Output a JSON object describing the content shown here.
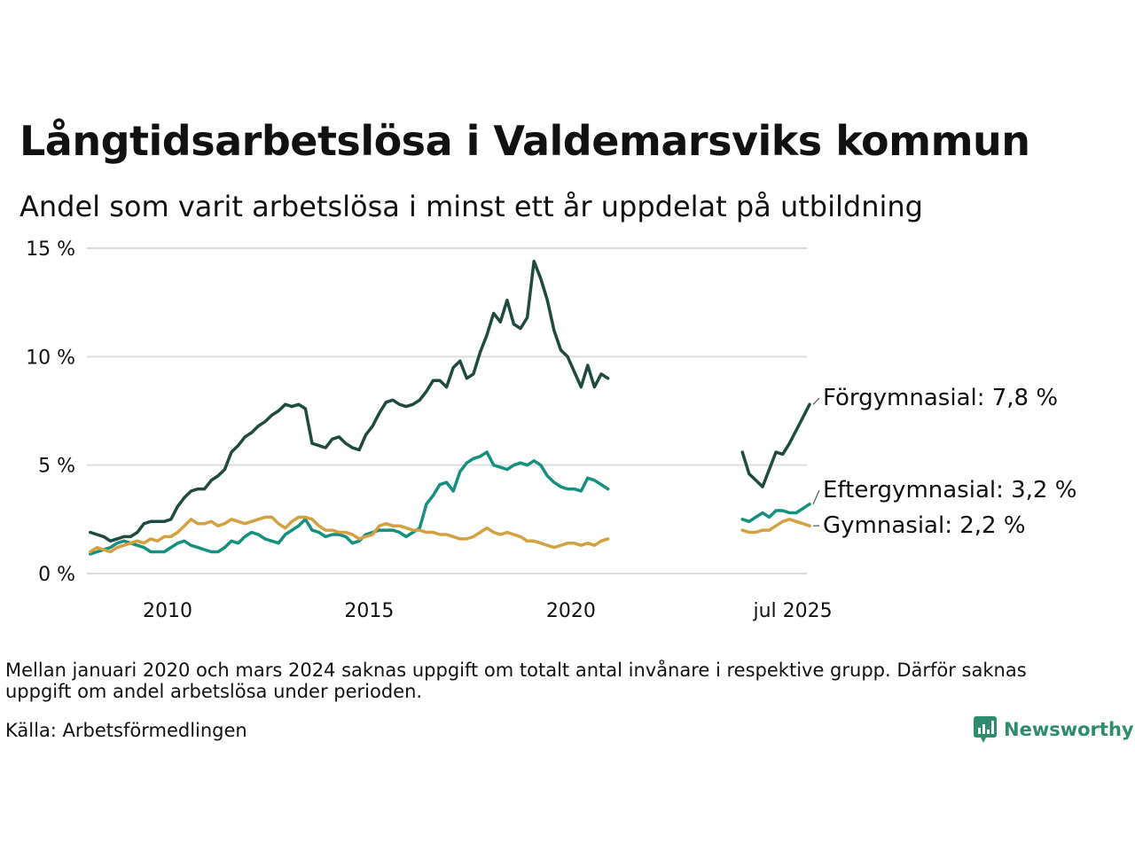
{
  "title": "Långtidsarbetslösa i Valdemarsviks kommun",
  "subtitle": "Andel som varit arbetslösa i minst ett år uppdelat på utbildning",
  "note": "Mellan januari 2020 och mars 2024 saknas uppgift om totalt antal invånare i respektive grupp. Därför saknas uppgift om andel arbetslösa under perioden.",
  "source": "Källa: Arbetsförmedlingen",
  "brand": {
    "name": "Newsworthy",
    "icon": "newsworthy-logo-icon"
  },
  "colors": {
    "forgymnasial": "#1f4a40",
    "eftergymnasial": "#14907f",
    "gymnasial": "#d4a040",
    "grid": "#dddddd",
    "brand": "#2e8b6e"
  },
  "chart_data": {
    "type": "line",
    "title": "Långtidsarbetslösa i Valdemarsviks kommun",
    "xlabel": "",
    "ylabel": "",
    "x_ticks": [
      "2010",
      "2015",
      "2020",
      "jul 2025"
    ],
    "y_ticks": [
      "0 %",
      "5 %",
      "10 %",
      "15 %"
    ],
    "ylim": [
      0,
      15
    ],
    "grid": true,
    "gap": "januari 2020 – mars 2024",
    "series": [
      {
        "name": "Förgymnasial",
        "end_label": "Förgymnasial: 7,8 %",
        "color": "#1f4a40",
        "points": [
          [
            "2008-02",
            1.9
          ],
          [
            "2008-04",
            1.8
          ],
          [
            "2008-06",
            1.7
          ],
          [
            "2008-08",
            1.5
          ],
          [
            "2008-10",
            1.6
          ],
          [
            "2008-12",
            1.7
          ],
          [
            "2009-02",
            1.7
          ],
          [
            "2009-04",
            1.9
          ],
          [
            "2009-06",
            2.3
          ],
          [
            "2009-08",
            2.4
          ],
          [
            "2009-10",
            2.4
          ],
          [
            "2009-12",
            2.4
          ],
          [
            "2010-02",
            2.5
          ],
          [
            "2010-04",
            3.1
          ],
          [
            "2010-06",
            3.5
          ],
          [
            "2010-08",
            3.8
          ],
          [
            "2010-10",
            3.9
          ],
          [
            "2010-12",
            3.9
          ],
          [
            "2011-02",
            4.3
          ],
          [
            "2011-04",
            4.5
          ],
          [
            "2011-06",
            4.8
          ],
          [
            "2011-08",
            5.6
          ],
          [
            "2011-10",
            5.9
          ],
          [
            "2011-12",
            6.3
          ],
          [
            "2012-02",
            6.5
          ],
          [
            "2012-04",
            6.8
          ],
          [
            "2012-06",
            7.0
          ],
          [
            "2012-08",
            7.3
          ],
          [
            "2012-10",
            7.5
          ],
          [
            "2012-12",
            7.8
          ],
          [
            "2013-02",
            7.7
          ],
          [
            "2013-04",
            7.8
          ],
          [
            "2013-06",
            7.6
          ],
          [
            "2013-08",
            6.0
          ],
          [
            "2013-10",
            5.9
          ],
          [
            "2013-12",
            5.8
          ],
          [
            "2014-02",
            6.2
          ],
          [
            "2014-04",
            6.3
          ],
          [
            "2014-06",
            6.0
          ],
          [
            "2014-08",
            5.8
          ],
          [
            "2014-10",
            5.7
          ],
          [
            "2014-12",
            6.4
          ],
          [
            "2015-02",
            6.8
          ],
          [
            "2015-04",
            7.4
          ],
          [
            "2015-06",
            7.9
          ],
          [
            "2015-08",
            8.0
          ],
          [
            "2015-10",
            7.8
          ],
          [
            "2015-12",
            7.7
          ],
          [
            "2016-02",
            7.8
          ],
          [
            "2016-04",
            8.0
          ],
          [
            "2016-06",
            8.4
          ],
          [
            "2016-08",
            8.9
          ],
          [
            "2016-10",
            8.9
          ],
          [
            "2016-12",
            8.6
          ],
          [
            "2017-02",
            9.5
          ],
          [
            "2017-04",
            9.8
          ],
          [
            "2017-06",
            9.0
          ],
          [
            "2017-08",
            9.2
          ],
          [
            "2017-10",
            10.2
          ],
          [
            "2017-12",
            11.0
          ],
          [
            "2018-02",
            12.0
          ],
          [
            "2018-04",
            11.6
          ],
          [
            "2018-06",
            12.6
          ],
          [
            "2018-08",
            11.5
          ],
          [
            "2018-10",
            11.3
          ],
          [
            "2018-12",
            11.8
          ],
          [
            "2019-02",
            14.4
          ],
          [
            "2019-04",
            13.6
          ],
          [
            "2019-06",
            12.6
          ],
          [
            "2019-08",
            11.2
          ],
          [
            "2019-10",
            10.3
          ],
          [
            "2019-12",
            10.0
          ],
          [
            "2020-02",
            9.3
          ],
          [
            "2020-04",
            8.6
          ],
          [
            "2020-06",
            9.6
          ],
          [
            "2020-08",
            8.6
          ],
          [
            "2020-10",
            9.2
          ],
          [
            "2020-12",
            9.0
          ],
          null,
          [
            "2024-04",
            5.6
          ],
          [
            "2024-06",
            4.6
          ],
          [
            "2024-08",
            4.3
          ],
          [
            "2024-10",
            4.0
          ],
          [
            "2024-12",
            4.8
          ],
          [
            "2025-02",
            5.6
          ],
          [
            "2025-04",
            5.5
          ],
          [
            "2025-06",
            6.0
          ],
          [
            "2025-08",
            6.6
          ],
          [
            "2025-10",
            7.2
          ],
          [
            "2025-12",
            7.8
          ]
        ]
      },
      {
        "name": "Eftergymnasial",
        "end_label": "Eftergymnasial: 3,2 %",
        "color": "#14907f",
        "points": [
          [
            "2008-02",
            0.9
          ],
          [
            "2008-04",
            1.0
          ],
          [
            "2008-06",
            1.1
          ],
          [
            "2008-08",
            1.2
          ],
          [
            "2008-10",
            1.4
          ],
          [
            "2008-12",
            1.5
          ],
          [
            "2009-02",
            1.4
          ],
          [
            "2009-04",
            1.3
          ],
          [
            "2009-06",
            1.2
          ],
          [
            "2009-08",
            1.0
          ],
          [
            "2009-10",
            1.0
          ],
          [
            "2009-12",
            1.0
          ],
          [
            "2010-02",
            1.2
          ],
          [
            "2010-04",
            1.4
          ],
          [
            "2010-06",
            1.5
          ],
          [
            "2010-08",
            1.3
          ],
          [
            "2010-10",
            1.2
          ],
          [
            "2010-12",
            1.1
          ],
          [
            "2011-02",
            1.0
          ],
          [
            "2011-04",
            1.0
          ],
          [
            "2011-06",
            1.2
          ],
          [
            "2011-08",
            1.5
          ],
          [
            "2011-10",
            1.4
          ],
          [
            "2011-12",
            1.7
          ],
          [
            "2012-02",
            1.9
          ],
          [
            "2012-04",
            1.8
          ],
          [
            "2012-06",
            1.6
          ],
          [
            "2012-08",
            1.5
          ],
          [
            "2012-10",
            1.4
          ],
          [
            "2012-12",
            1.8
          ],
          [
            "2013-02",
            2.0
          ],
          [
            "2013-04",
            2.2
          ],
          [
            "2013-06",
            2.5
          ],
          [
            "2013-08",
            2.0
          ],
          [
            "2013-10",
            1.9
          ],
          [
            "2013-12",
            1.7
          ],
          [
            "2014-02",
            1.8
          ],
          [
            "2014-04",
            1.8
          ],
          [
            "2014-06",
            1.7
          ],
          [
            "2014-08",
            1.4
          ],
          [
            "2014-10",
            1.5
          ],
          [
            "2014-12",
            1.8
          ],
          [
            "2015-02",
            1.9
          ],
          [
            "2015-04",
            2.0
          ],
          [
            "2015-06",
            2.0
          ],
          [
            "2015-08",
            2.0
          ],
          [
            "2015-10",
            1.9
          ],
          [
            "2015-12",
            1.7
          ],
          [
            "2016-02",
            1.9
          ],
          [
            "2016-04",
            2.1
          ],
          [
            "2016-06",
            3.2
          ],
          [
            "2016-08",
            3.6
          ],
          [
            "2016-10",
            4.1
          ],
          [
            "2016-12",
            4.2
          ],
          [
            "2017-02",
            3.8
          ],
          [
            "2017-04",
            4.7
          ],
          [
            "2017-06",
            5.1
          ],
          [
            "2017-08",
            5.3
          ],
          [
            "2017-10",
            5.4
          ],
          [
            "2017-12",
            5.6
          ],
          [
            "2018-02",
            5.0
          ],
          [
            "2018-04",
            4.9
          ],
          [
            "2018-06",
            4.8
          ],
          [
            "2018-08",
            5.0
          ],
          [
            "2018-10",
            5.1
          ],
          [
            "2018-12",
            5.0
          ],
          [
            "2019-02",
            5.2
          ],
          [
            "2019-04",
            5.0
          ],
          [
            "2019-06",
            4.5
          ],
          [
            "2019-08",
            4.2
          ],
          [
            "2019-10",
            4.0
          ],
          [
            "2019-12",
            3.9
          ],
          [
            "2020-02",
            3.9
          ],
          [
            "2020-04",
            3.8
          ],
          [
            "2020-06",
            4.4
          ],
          [
            "2020-08",
            4.3
          ],
          [
            "2020-10",
            4.1
          ],
          [
            "2020-12",
            3.9
          ],
          null,
          [
            "2024-04",
            2.5
          ],
          [
            "2024-06",
            2.4
          ],
          [
            "2024-08",
            2.6
          ],
          [
            "2024-10",
            2.8
          ],
          [
            "2024-12",
            2.6
          ],
          [
            "2025-02",
            2.9
          ],
          [
            "2025-04",
            2.9
          ],
          [
            "2025-06",
            2.8
          ],
          [
            "2025-08",
            2.8
          ],
          [
            "2025-10",
            3.0
          ],
          [
            "2025-12",
            3.2
          ]
        ]
      },
      {
        "name": "Gymnasial",
        "end_label": "Gymnasial: 2,2 %",
        "color": "#d4a040",
        "points": [
          [
            "2008-02",
            1.0
          ],
          [
            "2008-04",
            1.2
          ],
          [
            "2008-06",
            1.1
          ],
          [
            "2008-08",
            1.0
          ],
          [
            "2008-10",
            1.2
          ],
          [
            "2008-12",
            1.3
          ],
          [
            "2009-02",
            1.4
          ],
          [
            "2009-04",
            1.5
          ],
          [
            "2009-06",
            1.4
          ],
          [
            "2009-08",
            1.6
          ],
          [
            "2009-10",
            1.5
          ],
          [
            "2009-12",
            1.7
          ],
          [
            "2010-02",
            1.7
          ],
          [
            "2010-04",
            1.9
          ],
          [
            "2010-06",
            2.2
          ],
          [
            "2010-08",
            2.5
          ],
          [
            "2010-10",
            2.3
          ],
          [
            "2010-12",
            2.3
          ],
          [
            "2011-02",
            2.4
          ],
          [
            "2011-04",
            2.2
          ],
          [
            "2011-06",
            2.3
          ],
          [
            "2011-08",
            2.5
          ],
          [
            "2011-10",
            2.4
          ],
          [
            "2011-12",
            2.3
          ],
          [
            "2012-02",
            2.4
          ],
          [
            "2012-04",
            2.5
          ],
          [
            "2012-06",
            2.6
          ],
          [
            "2012-08",
            2.6
          ],
          [
            "2012-10",
            2.3
          ],
          [
            "2012-12",
            2.1
          ],
          [
            "2013-02",
            2.4
          ],
          [
            "2013-04",
            2.6
          ],
          [
            "2013-06",
            2.6
          ],
          [
            "2013-08",
            2.5
          ],
          [
            "2013-10",
            2.2
          ],
          [
            "2013-12",
            2.0
          ],
          [
            "2014-02",
            2.0
          ],
          [
            "2014-04",
            1.9
          ],
          [
            "2014-06",
            1.9
          ],
          [
            "2014-08",
            1.8
          ],
          [
            "2014-10",
            1.6
          ],
          [
            "2014-12",
            1.7
          ],
          [
            "2015-02",
            1.8
          ],
          [
            "2015-04",
            2.2
          ],
          [
            "2015-06",
            2.3
          ],
          [
            "2015-08",
            2.2
          ],
          [
            "2015-10",
            2.2
          ],
          [
            "2015-12",
            2.1
          ],
          [
            "2016-02",
            2.0
          ],
          [
            "2016-04",
            2.0
          ],
          [
            "2016-06",
            1.9
          ],
          [
            "2016-08",
            1.9
          ],
          [
            "2016-10",
            1.8
          ],
          [
            "2016-12",
            1.8
          ],
          [
            "2017-02",
            1.7
          ],
          [
            "2017-04",
            1.6
          ],
          [
            "2017-06",
            1.6
          ],
          [
            "2017-08",
            1.7
          ],
          [
            "2017-10",
            1.9
          ],
          [
            "2017-12",
            2.1
          ],
          [
            "2018-02",
            1.9
          ],
          [
            "2018-04",
            1.8
          ],
          [
            "2018-06",
            1.9
          ],
          [
            "2018-08",
            1.8
          ],
          [
            "2018-10",
            1.7
          ],
          [
            "2018-12",
            1.5
          ],
          [
            "2019-02",
            1.5
          ],
          [
            "2019-04",
            1.4
          ],
          [
            "2019-06",
            1.3
          ],
          [
            "2019-08",
            1.2
          ],
          [
            "2019-10",
            1.3
          ],
          [
            "2019-12",
            1.4
          ],
          [
            "2020-02",
            1.4
          ],
          [
            "2020-04",
            1.3
          ],
          [
            "2020-06",
            1.4
          ],
          [
            "2020-08",
            1.3
          ],
          [
            "2020-10",
            1.5
          ],
          [
            "2020-12",
            1.6
          ],
          null,
          [
            "2024-04",
            2.0
          ],
          [
            "2024-06",
            1.9
          ],
          [
            "2024-08",
            1.9
          ],
          [
            "2024-10",
            2.0
          ],
          [
            "2024-12",
            2.0
          ],
          [
            "2025-02",
            2.2
          ],
          [
            "2025-04",
            2.4
          ],
          [
            "2025-06",
            2.5
          ],
          [
            "2025-08",
            2.4
          ],
          [
            "2025-10",
            2.3
          ],
          [
            "2025-12",
            2.2
          ]
        ]
      }
    ]
  }
}
